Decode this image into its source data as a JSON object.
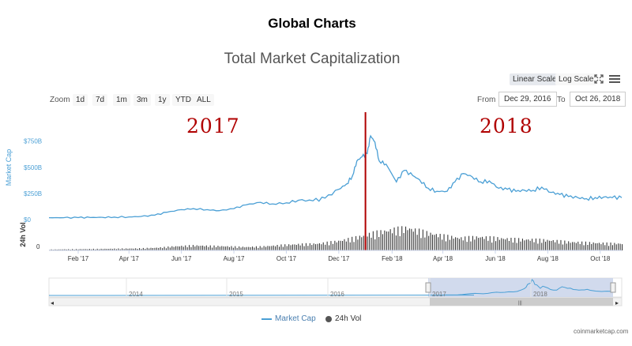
{
  "page": {
    "heading": "Global Charts"
  },
  "toolbar": {
    "linear_label": "Linear Scale",
    "log_label": "Log Scale",
    "zoom_label": "Zoom",
    "zoom_buttons": [
      "1d",
      "7d",
      "1m",
      "3m",
      "1y",
      "YTD",
      "ALL"
    ],
    "from_label": "From",
    "from_value": "Dec 29, 2016",
    "to_label": "To",
    "to_value": "Oct 26, 2018",
    "expand_icon": "fullscreen-icon",
    "menu_icon": "hamburger-menu-icon"
  },
  "annotations": {
    "year_left": "2017",
    "year_right": "2018",
    "divider_color": "#b00000",
    "divider_date": "2018-01-01"
  },
  "legend": {
    "market_cap": "Market Cap",
    "volume": "24h Vol"
  },
  "credit": "coinmarketcap.com",
  "colors": {
    "market_cap_line": "#4a9fd5",
    "volume_bars": "#3a3a3a",
    "axis_label": "#4a9fd5",
    "navigator_mask": "#c9d4ea"
  },
  "chart_data": {
    "type": "line",
    "title": "Total Market Capitalization",
    "xlabel": "",
    "ylabel": "Market Cap",
    "y2label": "24h Vol",
    "xlim": [
      "2016-12-29",
      "2018-10-26"
    ],
    "ylim": [
      0,
      800
    ],
    "y_unit": "B",
    "y_ticks": [
      "$0",
      "$250B",
      "$500B",
      "$750B"
    ],
    "vol_ticks": [
      "0"
    ],
    "x_tick_labels": [
      "Feb '17",
      "Apr '17",
      "Jun '17",
      "Aug '17",
      "Oct '17",
      "Dec '17",
      "Feb '18",
      "Apr '18",
      "Jun '18",
      "Aug '18",
      "Oct '18"
    ],
    "grid": false,
    "legend_position": "bottom-center",
    "series": [
      {
        "name": "Market Cap",
        "x": [
          "2016-12-29",
          "2017-01-15",
          "2017-02-01",
          "2017-02-15",
          "2017-03-01",
          "2017-03-15",
          "2017-04-01",
          "2017-04-15",
          "2017-05-01",
          "2017-05-15",
          "2017-06-01",
          "2017-06-15",
          "2017-07-01",
          "2017-07-15",
          "2017-08-01",
          "2017-08-15",
          "2017-09-01",
          "2017-09-15",
          "2017-10-01",
          "2017-10-15",
          "2017-11-01",
          "2017-11-15",
          "2017-12-01",
          "2017-12-10",
          "2017-12-17",
          "2017-12-22",
          "2017-12-28",
          "2018-01-03",
          "2018-01-07",
          "2018-01-12",
          "2018-01-17",
          "2018-01-25",
          "2018-02-06",
          "2018-02-15",
          "2018-02-25",
          "2018-03-05",
          "2018-03-15",
          "2018-03-25",
          "2018-04-06",
          "2018-04-15",
          "2018-04-25",
          "2018-05-05",
          "2018-05-15",
          "2018-05-25",
          "2018-06-05",
          "2018-06-15",
          "2018-06-25",
          "2018-07-05",
          "2018-07-15",
          "2018-07-25",
          "2018-08-05",
          "2018-08-15",
          "2018-08-25",
          "2018-09-05",
          "2018-09-15",
          "2018-09-25",
          "2018-10-05",
          "2018-10-15",
          "2018-10-26"
        ],
        "values": [
          18,
          18,
          19,
          20,
          22,
          24,
          26,
          30,
          42,
          70,
          95,
          105,
          95,
          85,
          105,
          140,
          165,
          150,
          160,
          185,
          180,
          205,
          290,
          340,
          420,
          560,
          600,
          630,
          800,
          740,
          560,
          530,
          360,
          470,
          420,
          380,
          300,
          270,
          270,
          360,
          440,
          410,
          360,
          370,
          300,
          290,
          270,
          280,
          280,
          310,
          260,
          240,
          220,
          210,
          200,
          210,
          215,
          210,
          210
        ]
      },
      {
        "name": "24h Vol",
        "x_range": [
          "2016-12-29",
          "2018-10-26"
        ],
        "note": "daily volume bars",
        "values_monthly_peak_pct": [
          4,
          5,
          6,
          7,
          8,
          9,
          12,
          18,
          22,
          20,
          18,
          15,
          18,
          24,
          28,
          30,
          40,
          55,
          75,
          90,
          100,
          80,
          65,
          55,
          60,
          55,
          50,
          48,
          45,
          38,
          35,
          32,
          30
        ]
      }
    ],
    "navigator": {
      "x_tick_labels": [
        "2014",
        "2015",
        "2016",
        "2017",
        "2018"
      ],
      "selected_range": [
        "2016-12-29",
        "2018-10-26"
      ]
    }
  }
}
